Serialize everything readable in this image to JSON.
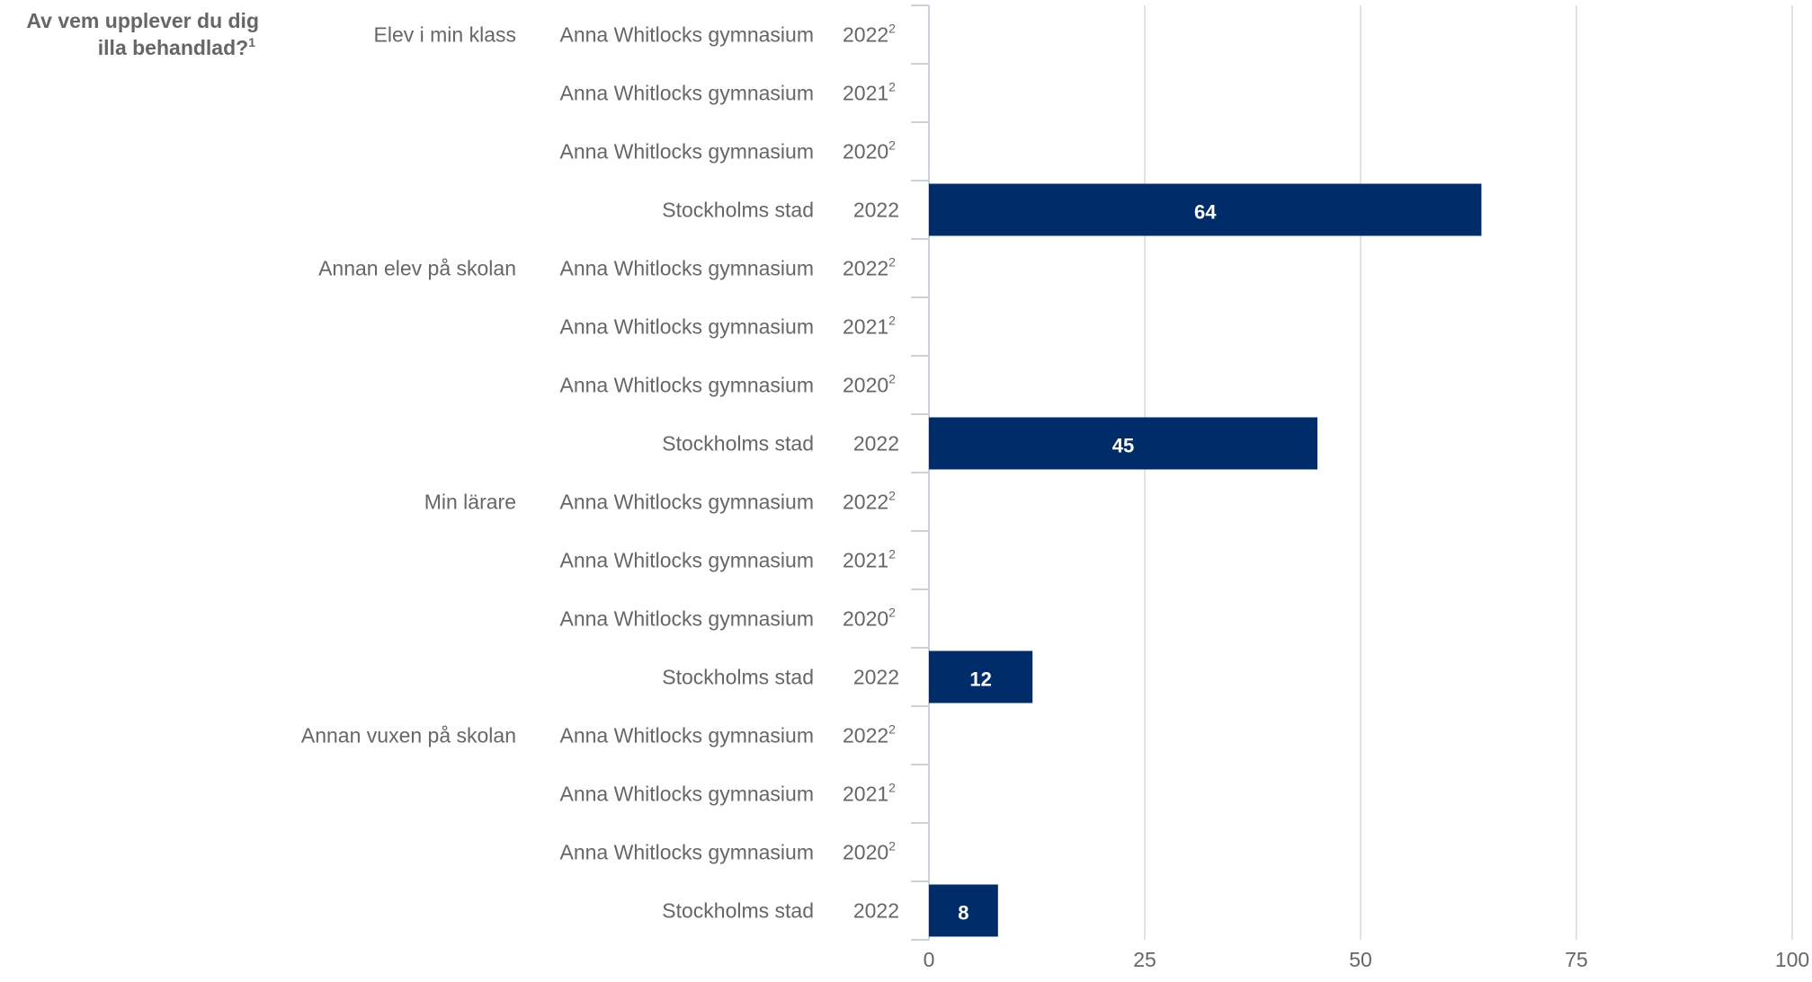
{
  "chart_data": {
    "type": "bar",
    "orientation": "horizontal",
    "header_line1": "Av vem upplever du dig",
    "header_line2": "illa behandlad?",
    "header_sup": "1",
    "xlim": [
      0,
      100
    ],
    "xticks": [
      0,
      25,
      50,
      75,
      100
    ],
    "grid": true,
    "bar_color": "#002d6a",
    "groups": [
      {
        "label": "Elev i min klass",
        "rows": [
          {
            "entity": "Anna Whitlocks gymnasium",
            "year": "2022",
            "sup": "2",
            "value": null
          },
          {
            "entity": "Anna Whitlocks gymnasium",
            "year": "2021",
            "sup": "2",
            "value": null
          },
          {
            "entity": "Anna Whitlocks gymnasium",
            "year": "2020",
            "sup": "2",
            "value": null
          },
          {
            "entity": "Stockholms stad",
            "year": "2022",
            "sup": "",
            "value": 64
          }
        ]
      },
      {
        "label": "Annan elev på skolan",
        "rows": [
          {
            "entity": "Anna Whitlocks gymnasium",
            "year": "2022",
            "sup": "2",
            "value": null
          },
          {
            "entity": "Anna Whitlocks gymnasium",
            "year": "2021",
            "sup": "2",
            "value": null
          },
          {
            "entity": "Anna Whitlocks gymnasium",
            "year": "2020",
            "sup": "2",
            "value": null
          },
          {
            "entity": "Stockholms stad",
            "year": "2022",
            "sup": "",
            "value": 45
          }
        ]
      },
      {
        "label": "Min lärare",
        "rows": [
          {
            "entity": "Anna Whitlocks gymnasium",
            "year": "2022",
            "sup": "2",
            "value": null
          },
          {
            "entity": "Anna Whitlocks gymnasium",
            "year": "2021",
            "sup": "2",
            "value": null
          },
          {
            "entity": "Anna Whitlocks gymnasium",
            "year": "2020",
            "sup": "2",
            "value": null
          },
          {
            "entity": "Stockholms stad",
            "year": "2022",
            "sup": "",
            "value": 12
          }
        ]
      },
      {
        "label": "Annan vuxen på skolan",
        "rows": [
          {
            "entity": "Anna Whitlocks gymnasium",
            "year": "2022",
            "sup": "2",
            "value": null
          },
          {
            "entity": "Anna Whitlocks gymnasium",
            "year": "2021",
            "sup": "2",
            "value": null
          },
          {
            "entity": "Anna Whitlocks gymnasium",
            "year": "2020",
            "sup": "2",
            "value": null
          },
          {
            "entity": "Stockholms stad",
            "year": "2022",
            "sup": "",
            "value": 8
          }
        ]
      }
    ]
  }
}
